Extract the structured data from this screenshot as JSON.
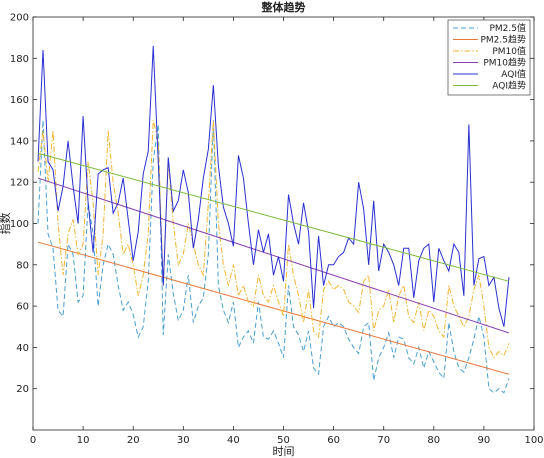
{
  "chart_data": {
    "type": "line",
    "title": "整体趋势",
    "xlabel": "时间",
    "ylabel": "指数",
    "xlim": [
      0,
      100
    ],
    "ylim": [
      0,
      200
    ],
    "xticks": [
      0,
      10,
      20,
      30,
      40,
      50,
      60,
      70,
      80,
      90,
      100
    ],
    "yticks": [
      20,
      40,
      60,
      80,
      100,
      120,
      140,
      160,
      180,
      200
    ],
    "grid": false,
    "legend_position": "top-right",
    "series": [
      {
        "name": "PM2.5值",
        "color": "#4a9fd0",
        "style": "dashed",
        "x": [
          1,
          2,
          3,
          4,
          5,
          6,
          7,
          8,
          9,
          10,
          11,
          12,
          13,
          14,
          15,
          16,
          17,
          18,
          19,
          20,
          21,
          22,
          23,
          24,
          25,
          26,
          27,
          28,
          29,
          30,
          31,
          32,
          33,
          34,
          35,
          36,
          37,
          38,
          39,
          40,
          41,
          42,
          43,
          44,
          45,
          46,
          47,
          48,
          49,
          50,
          51,
          52,
          53,
          54,
          55,
          56,
          57,
          58,
          59,
          60,
          61,
          62,
          63,
          64,
          65,
          66,
          67,
          68,
          69,
          70,
          71,
          72,
          73,
          74,
          75,
          76,
          77,
          78,
          79,
          80,
          81,
          82,
          83,
          84,
          85,
          86,
          87,
          88,
          89,
          90,
          91,
          92,
          93,
          94,
          95
        ],
        "values": [
          100,
          150,
          95,
          88,
          58,
          55,
          90,
          85,
          62,
          65,
          110,
          95,
          60,
          80,
          90,
          85,
          70,
          58,
          62,
          56,
          45,
          50,
          72,
          130,
          148,
          46,
          85,
          66,
          53,
          58,
          75,
          52,
          60,
          64,
          85,
          150,
          70,
          58,
          52,
          62,
          40,
          45,
          48,
          42,
          62,
          45,
          44,
          48,
          42,
          35,
          70,
          50,
          46,
          38,
          48,
          30,
          27,
          50,
          55,
          50,
          52,
          50,
          44,
          40,
          37,
          50,
          52,
          24,
          35,
          40,
          47,
          35,
          45,
          44,
          35,
          32,
          40,
          30,
          38,
          33,
          28,
          25,
          52,
          38,
          30,
          28,
          35,
          44,
          55,
          45,
          20,
          18,
          20,
          18,
          25
        ]
      },
      {
        "name": "PM2.5趋势",
        "color": "#e8773a",
        "style": "solid",
        "x": [
          1,
          95
        ],
        "values": [
          91,
          27
        ]
      },
      {
        "name": "PM10值",
        "color": "#f2b531",
        "style": "dashdot",
        "x": [
          1,
          2,
          3,
          4,
          5,
          6,
          7,
          8,
          9,
          10,
          11,
          12,
          13,
          14,
          15,
          16,
          17,
          18,
          19,
          20,
          21,
          22,
          23,
          24,
          25,
          26,
          27,
          28,
          29,
          30,
          31,
          32,
          33,
          34,
          35,
          36,
          37,
          38,
          39,
          40,
          41,
          42,
          43,
          44,
          45,
          46,
          47,
          48,
          49,
          50,
          51,
          52,
          53,
          54,
          55,
          56,
          57,
          58,
          59,
          60,
          61,
          62,
          63,
          64,
          65,
          66,
          67,
          68,
          69,
          70,
          71,
          72,
          73,
          74,
          75,
          76,
          77,
          78,
          79,
          80,
          81,
          82,
          83,
          84,
          85,
          86,
          87,
          88,
          89,
          90,
          91,
          92,
          93,
          94,
          95
        ],
        "values": [
          125,
          145,
          120,
          145,
          100,
          75,
          95,
          102,
          85,
          90,
          130,
          110,
          75,
          95,
          145,
          120,
          105,
          85,
          90,
          80,
          65,
          75,
          95,
          150,
          140,
          70,
          130,
          100,
          80,
          85,
          100,
          90,
          80,
          75,
          110,
          150,
          100,
          80,
          70,
          80,
          65,
          70,
          62,
          60,
          75,
          65,
          62,
          70,
          62,
          55,
          90,
          75,
          65,
          52,
          68,
          48,
          45,
          68,
          72,
          68,
          70,
          68,
          62,
          60,
          57,
          72,
          75,
          48,
          58,
          60,
          68,
          52,
          65,
          70,
          55,
          52,
          62,
          48,
          58,
          55,
          48,
          45,
          70,
          60,
          55,
          50,
          55,
          68,
          75,
          60,
          40,
          35,
          38,
          36,
          42
        ]
      },
      {
        "name": "PM10趋势",
        "color": "#8b3fb0",
        "style": "solid",
        "x": [
          1,
          95
        ],
        "values": [
          122,
          47
        ]
      },
      {
        "name": "AQI值",
        "color": "#2a30d0",
        "style": "solid",
        "x": [
          1,
          2,
          3,
          4,
          5,
          6,
          7,
          8,
          9,
          10,
          11,
          12,
          13,
          14,
          15,
          16,
          17,
          18,
          19,
          20,
          21,
          22,
          23,
          24,
          25,
          26,
          27,
          28,
          29,
          30,
          31,
          32,
          33,
          34,
          35,
          36,
          37,
          38,
          39,
          40,
          41,
          42,
          43,
          44,
          45,
          46,
          47,
          48,
          49,
          50,
          51,
          52,
          53,
          54,
          55,
          56,
          57,
          58,
          59,
          60,
          61,
          62,
          63,
          64,
          65,
          66,
          67,
          68,
          69,
          70,
          71,
          72,
          73,
          74,
          75,
          76,
          77,
          78,
          79,
          80,
          81,
          82,
          83,
          84,
          85,
          86,
          87,
          88,
          89,
          90,
          91,
          92,
          93,
          94,
          95
        ],
        "values": [
          130,
          184,
          130,
          126,
          106,
          118,
          140,
          118,
          100,
          152,
          110,
          86,
          124,
          126,
          127,
          105,
          110,
          122,
          102,
          82,
          96,
          124,
          135,
          186,
          130,
          70,
          132,
          106,
          111,
          126,
          115,
          88,
          102,
          122,
          136,
          167,
          128,
          108,
          100,
          89,
          133,
          122,
          100,
          80,
          97,
          86,
          95,
          75,
          84,
          72,
          114,
          100,
          90,
          110,
          96,
          59,
          94,
          70,
          80,
          80,
          84,
          86,
          93,
          90,
          120,
          107,
          80,
          111,
          77,
          90,
          86,
          80,
          70,
          88,
          88,
          64,
          82,
          88,
          90,
          62,
          88,
          82,
          77,
          90,
          86,
          65,
          148,
          70,
          83,
          84,
          70,
          74,
          59,
          50,
          74
        ]
      },
      {
        "name": "AQI趋势",
        "color": "#7cba3a",
        "style": "solid",
        "x": [
          1,
          95
        ],
        "values": [
          134,
          72
        ]
      }
    ]
  }
}
